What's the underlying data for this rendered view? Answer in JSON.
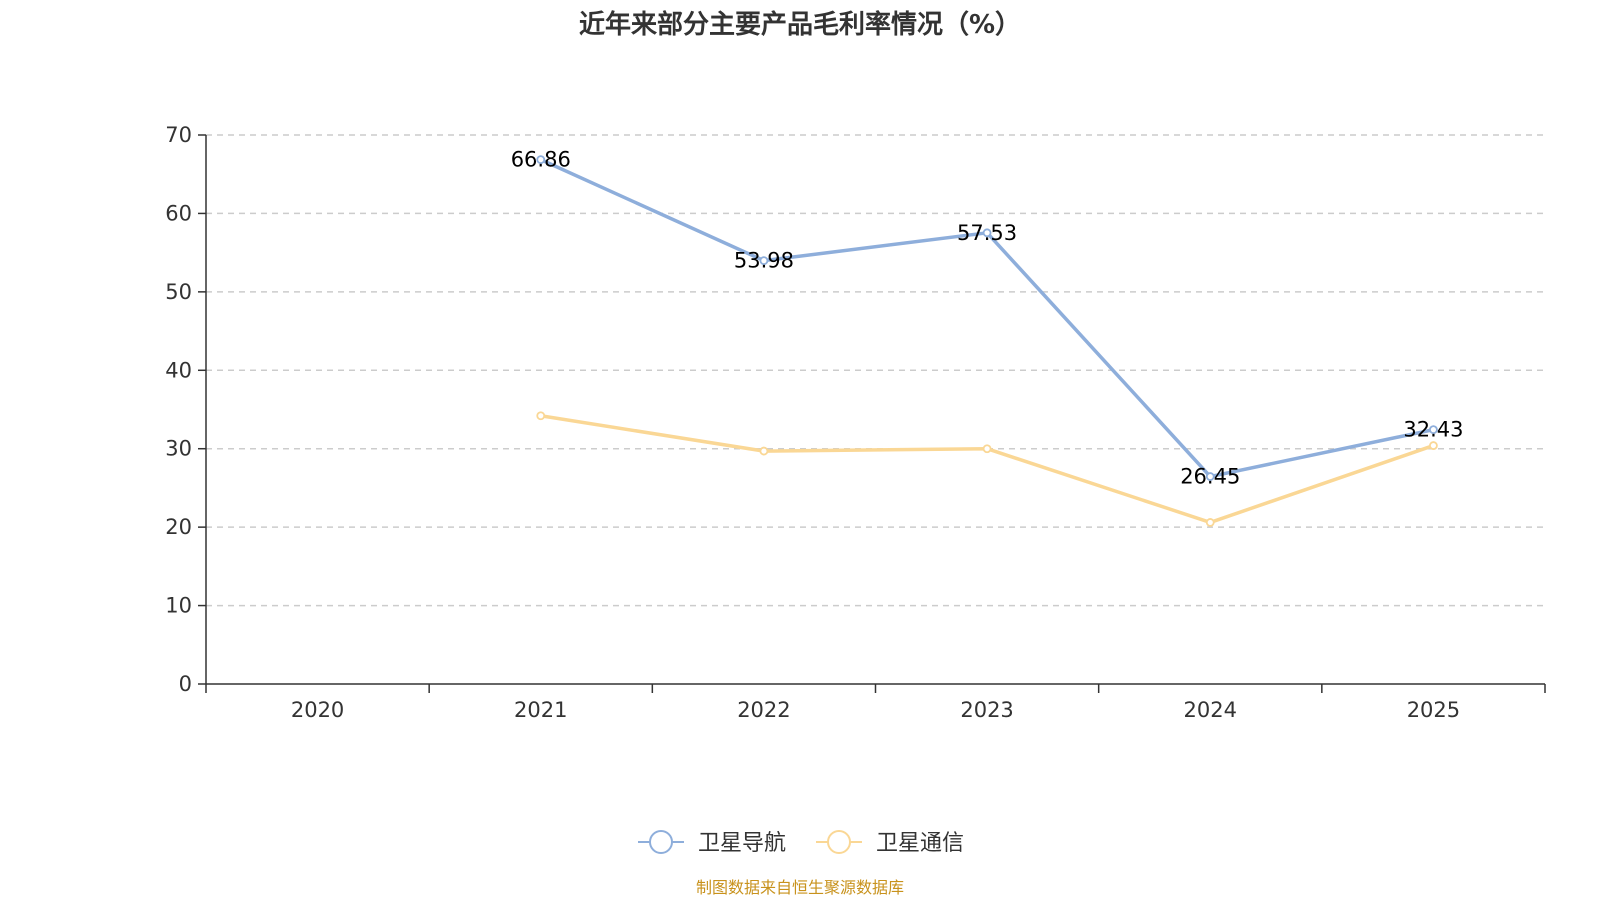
{
  "chart_data": {
    "type": "line",
    "title": "近年来部分主要产品毛利率情况（%）",
    "categories": [
      "2020",
      "2021",
      "2022",
      "2023",
      "2024",
      "2025"
    ],
    "ylim": [
      0,
      70
    ],
    "yticks": [
      "0",
      "10",
      "20",
      "30",
      "40",
      "50",
      "60",
      "70"
    ],
    "grid": true,
    "legend_position": "bottom-center",
    "series": [
      {
        "name": "卫星导航",
        "color": "#8eaedb",
        "values": [
          null,
          66.86,
          53.98,
          57.53,
          26.45,
          32.43
        ],
        "labels": [
          null,
          "66.86",
          "53.98",
          "57.53",
          "26.45",
          "32.43"
        ]
      },
      {
        "name": "卫星通信",
        "color": "#fad795",
        "values": [
          null,
          34.2,
          29.7,
          30.0,
          20.6,
          30.4
        ],
        "labels": [
          null,
          null,
          null,
          null,
          null,
          null
        ]
      }
    ],
    "source": "制图数据来自恒生聚源数据库",
    "source_color": "#c8921c"
  }
}
